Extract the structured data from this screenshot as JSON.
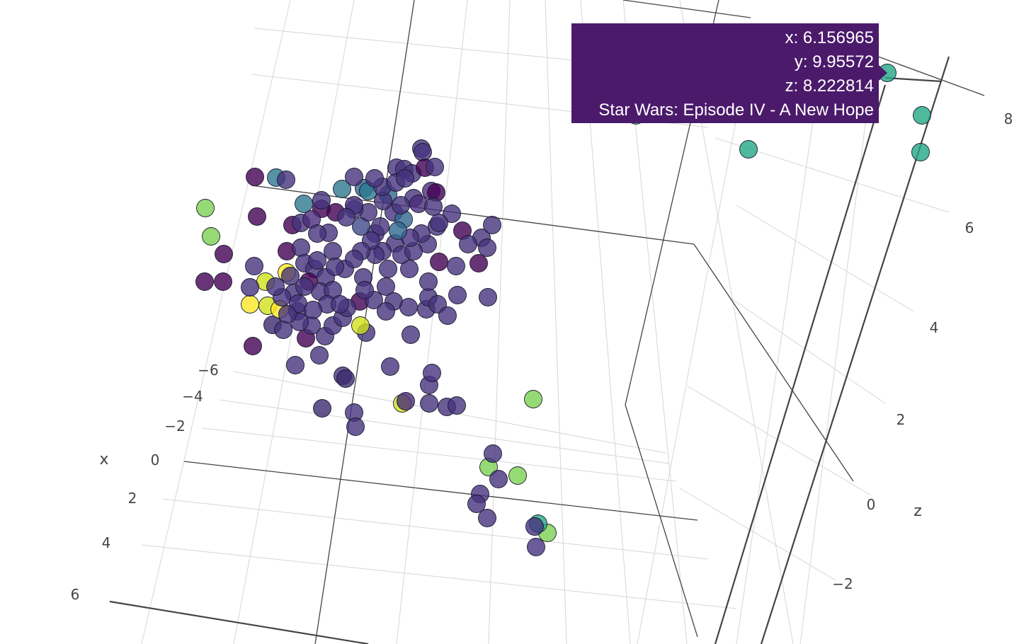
{
  "chart_data": {
    "type": "scatter3d",
    "axes": {
      "x": {
        "title": "x",
        "ticks": [
          "−6",
          "−4",
          "−2",
          "0",
          "2",
          "4",
          "6"
        ]
      },
      "z": {
        "title": "z",
        "ticks": [
          "−2",
          "0",
          "2",
          "4",
          "6",
          "8"
        ]
      }
    },
    "colorscale": "viridis",
    "grid": true,
    "hover": {
      "x_label": "x: 6.156965",
      "y_label": "y: 9.95572",
      "z_label": "z: 8.222814",
      "name_label": "Star Wars: Episode IV - A New Hope",
      "point": {
        "x": 6.156965,
        "y": 9.95572,
        "z": 8.222814
      },
      "color": "#4b1a6b"
    }
  }
}
